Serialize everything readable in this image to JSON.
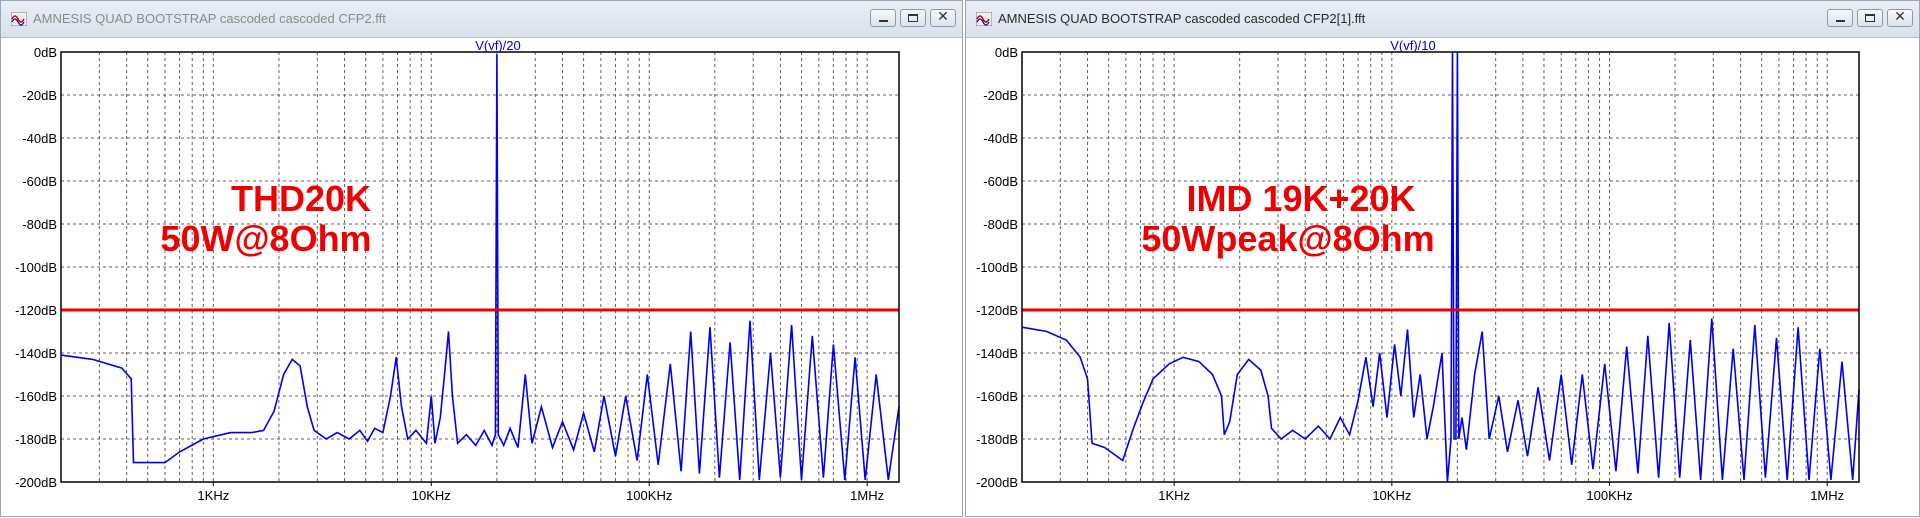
{
  "windows": [
    {
      "title": "AMNESIS QUAD BOOTSTRAP cascoded cascoded CFP2.fft",
      "active": false,
      "icon": "waveform-app-icon",
      "chart_data": {
        "type": "line",
        "title": "V(vf)/20",
        "xscale": "log",
        "xlim": [
          200,
          1400000
        ],
        "ylim": [
          -200,
          0
        ],
        "yticks": [
          "0dB",
          "-20dB",
          "-40dB",
          "-60dB",
          "-80dB",
          "-100dB",
          "-120dB",
          "-140dB",
          "-160dB",
          "-180dB",
          "-200dB"
        ],
        "xticks": [
          {
            "value": 1000,
            "label": "1KHz"
          },
          {
            "value": 10000,
            "label": "10KHz"
          },
          {
            "value": 100000,
            "label": "100KHz"
          },
          {
            "value": 1000000,
            "label": "1MHz"
          }
        ],
        "grid": true,
        "reference_line_db": -120,
        "annotation": [
          "THD20K",
          "50W@8Ohm"
        ],
        "series": [
          {
            "color": "#0000ee",
            "points": [
              [
                200,
                -141
              ],
              [
                280,
                -143
              ],
              [
                380,
                -147
              ],
              [
                420,
                -152
              ],
              [
                430,
                -191
              ],
              [
                600,
                -191
              ],
              [
                700,
                -186
              ],
              [
                900,
                -180
              ],
              [
                1200,
                -177
              ],
              [
                1500,
                -177
              ],
              [
                1700,
                -176
              ],
              [
                1900,
                -167
              ],
              [
                2100,
                -150
              ],
              [
                2300,
                -143
              ],
              [
                2500,
                -146
              ],
              [
                2700,
                -165
              ],
              [
                2900,
                -176
              ],
              [
                3300,
                -180
              ],
              [
                3700,
                -177
              ],
              [
                4200,
                -180
              ],
              [
                4700,
                -176
              ],
              [
                5100,
                -181
              ],
              [
                5500,
                -175
              ],
              [
                6000,
                -177
              ],
              [
                6500,
                -160
              ],
              [
                6900,
                -142
              ],
              [
                7300,
                -165
              ],
              [
                7800,
                -180
              ],
              [
                8500,
                -176
              ],
              [
                9500,
                -182
              ],
              [
                10000,
                -160
              ],
              [
                10400,
                -182
              ],
              [
                11000,
                -170
              ],
              [
                11500,
                -150
              ],
              [
                12000,
                -130
              ],
              [
                12500,
                -160
              ],
              [
                13200,
                -182
              ],
              [
                14500,
                -178
              ],
              [
                16000,
                -183
              ],
              [
                17500,
                -176
              ],
              [
                19000,
                -183
              ],
              [
                19700,
                -178
              ],
              [
                20000,
                -1
              ],
              [
                20300,
                -178
              ],
              [
                21500,
                -183
              ],
              [
                23000,
                -175
              ],
              [
                25000,
                -184
              ],
              [
                27000,
                -150
              ],
              [
                29000,
                -182
              ],
              [
                32000,
                -165
              ],
              [
                36000,
                -184
              ],
              [
                40000,
                -172
              ],
              [
                45000,
                -185
              ],
              [
                50000,
                -168
              ],
              [
                56000,
                -186
              ],
              [
                62000,
                -160
              ],
              [
                70000,
                -188
              ],
              [
                78000,
                -160
              ],
              [
                88000,
                -190
              ],
              [
                98000,
                -150
              ],
              [
                110000,
                -192
              ],
              [
                125000,
                -145
              ],
              [
                140000,
                -195
              ],
              [
                155000,
                -130
              ],
              [
                170000,
                -196
              ],
              [
                190000,
                -128
              ],
              [
                210000,
                -198
              ],
              [
                235000,
                -135
              ],
              [
                260000,
                -199
              ],
              [
                290000,
                -125
              ],
              [
                320000,
                -199
              ],
              [
                360000,
                -140
              ],
              [
                400000,
                -198
              ],
              [
                450000,
                -127
              ],
              [
                500000,
                -199
              ],
              [
                560000,
                -132
              ],
              [
                630000,
                -198
              ],
              [
                700000,
                -136
              ],
              [
                790000,
                -199
              ],
              [
                880000,
                -142
              ],
              [
                980000,
                -199
              ],
              [
                1100000,
                -150
              ],
              [
                1250000,
                -199
              ],
              [
                1400000,
                -165
              ]
            ]
          }
        ]
      }
    },
    {
      "title": "AMNESIS QUAD BOOTSTRAP cascoded cascoded CFP2[1].fft",
      "active": true,
      "icon": "waveform-app-icon",
      "chart_data": {
        "type": "line",
        "title": "V(vf)/10",
        "xscale": "log",
        "xlim": [
          200,
          1400000
        ],
        "ylim": [
          -200,
          0
        ],
        "yticks": [
          "0dB",
          "-20dB",
          "-40dB",
          "-60dB",
          "-80dB",
          "-100dB",
          "-120dB",
          "-140dB",
          "-160dB",
          "-180dB",
          "-200dB"
        ],
        "xticks": [
          {
            "value": 1000,
            "label": "1KHz"
          },
          {
            "value": 10000,
            "label": "10KHz"
          },
          {
            "value": 100000,
            "label": "100KHz"
          },
          {
            "value": 1000000,
            "label": "1MHz"
          }
        ],
        "grid": true,
        "reference_line_db": -120,
        "annotation": [
          "IMD 19K+20K",
          "50Wpeak@8Ohm"
        ],
        "series": [
          {
            "color": "#0000ee",
            "points": [
              [
                200,
                -128
              ],
              [
                260,
                -130
              ],
              [
                320,
                -134
              ],
              [
                370,
                -142
              ],
              [
                400,
                -152
              ],
              [
                420,
                -182
              ],
              [
                480,
                -184
              ],
              [
                580,
                -190
              ],
              [
                650,
                -175
              ],
              [
                720,
                -163
              ],
              [
                800,
                -152
              ],
              [
                950,
                -145
              ],
              [
                1100,
                -142
              ],
              [
                1300,
                -144
              ],
              [
                1500,
                -150
              ],
              [
                1650,
                -160
              ],
              [
                1700,
                -178
              ],
              [
                1800,
                -172
              ],
              [
                1950,
                -150
              ],
              [
                2200,
                -143
              ],
              [
                2500,
                -148
              ],
              [
                2700,
                -160
              ],
              [
                2800,
                -175
              ],
              [
                3100,
                -180
              ],
              [
                3500,
                -176
              ],
              [
                4000,
                -180
              ],
              [
                4600,
                -174
              ],
              [
                5200,
                -180
              ],
              [
                5800,
                -170
              ],
              [
                6400,
                -178
              ],
              [
                7000,
                -162
              ],
              [
                7600,
                -142
              ],
              [
                8200,
                -165
              ],
              [
                8800,
                -140
              ],
              [
                9500,
                -170
              ],
              [
                10300,
                -136
              ],
              [
                11000,
                -160
              ],
              [
                11800,
                -129
              ],
              [
                12600,
                -170
              ],
              [
                13500,
                -150
              ],
              [
                14500,
                -180
              ],
              [
                15500,
                -165
              ],
              [
                17000,
                -140
              ],
              [
                18000,
                -200
              ],
              [
                18700,
                -180
              ],
              [
                19000,
                0
              ],
              [
                19300,
                -180
              ],
              [
                19700,
                -180
              ],
              [
                20000,
                0
              ],
              [
                20300,
                -180
              ],
              [
                21000,
                -170
              ],
              [
                22000,
                -185
              ],
              [
                24000,
                -150
              ],
              [
                26000,
                -130
              ],
              [
                28000,
                -180
              ],
              [
                31000,
                -160
              ],
              [
                34000,
                -186
              ],
              [
                38000,
                -162
              ],
              [
                42000,
                -188
              ],
              [
                47000,
                -156
              ],
              [
                53000,
                -190
              ],
              [
                60000,
                -150
              ],
              [
                67000,
                -192
              ],
              [
                75000,
                -150
              ],
              [
                84000,
                -194
              ],
              [
                95000,
                -145
              ],
              [
                107000,
                -195
              ],
              [
                120000,
                -137
              ],
              [
                135000,
                -196
              ],
              [
                150000,
                -132
              ],
              [
                168000,
                -198
              ],
              [
                188000,
                -126
              ],
              [
                210000,
                -198
              ],
              [
                235000,
                -134
              ],
              [
                262000,
                -199
              ],
              [
                295000,
                -124
              ],
              [
                330000,
                -199
              ],
              [
                370000,
                -138
              ],
              [
                415000,
                -199
              ],
              [
                465000,
                -127
              ],
              [
                520000,
                -198
              ],
              [
                585000,
                -133
              ],
              [
                655000,
                -199
              ],
              [
                735000,
                -128
              ],
              [
                825000,
                -199
              ],
              [
                925000,
                -138
              ],
              [
                1040000,
                -199
              ],
              [
                1170000,
                -144
              ],
              [
                1310000,
                -199
              ],
              [
                1400000,
                -157
              ]
            ]
          }
        ]
      }
    }
  ]
}
